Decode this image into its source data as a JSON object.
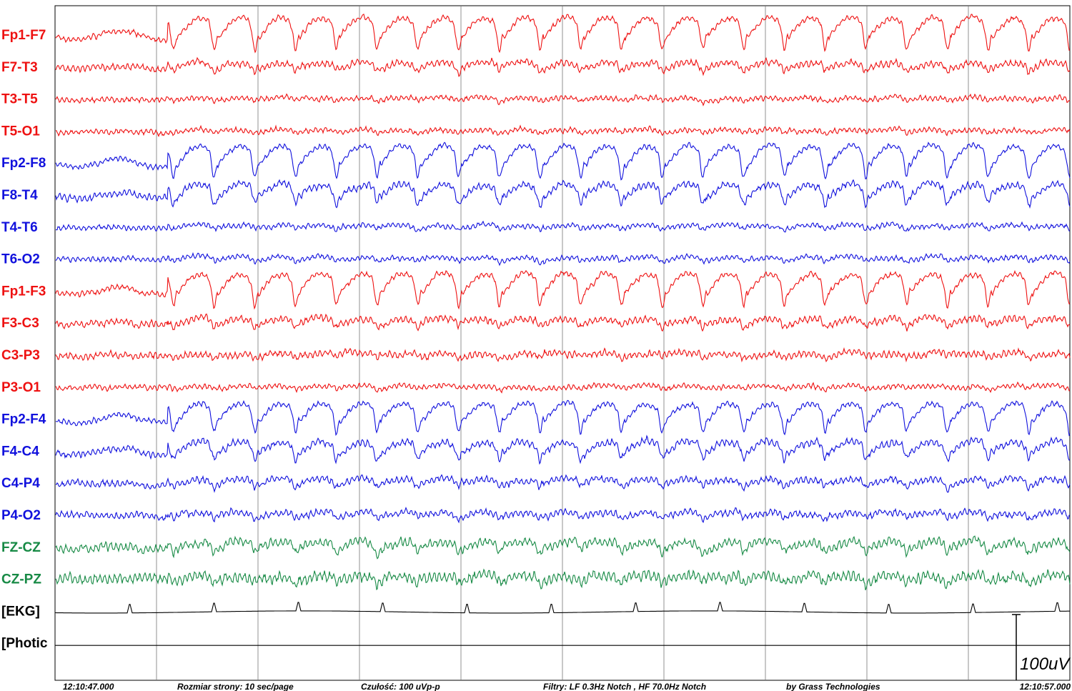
{
  "channels": [
    {
      "name": "Fp1-F7",
      "color": "#ee1111"
    },
    {
      "name": "F7-T3",
      "color": "#ee1111"
    },
    {
      "name": "T3-T5",
      "color": "#ee1111"
    },
    {
      "name": "T5-O1",
      "color": "#ee1111"
    },
    {
      "name": "Fp2-F8",
      "color": "#1111dd"
    },
    {
      "name": "F8-T4",
      "color": "#1111dd"
    },
    {
      "name": "T4-T6",
      "color": "#1111dd"
    },
    {
      "name": "T6-O2",
      "color": "#1111dd"
    },
    {
      "name": "Fp1-F3",
      "color": "#ee1111"
    },
    {
      "name": "F3-C3",
      "color": "#ee1111"
    },
    {
      "name": "C3-P3",
      "color": "#ee1111"
    },
    {
      "name": "P3-O1",
      "color": "#ee1111"
    },
    {
      "name": "Fp2-F4",
      "color": "#1111dd"
    },
    {
      "name": "F4-C4",
      "color": "#1111dd"
    },
    {
      "name": "C4-P4",
      "color": "#1111dd"
    },
    {
      "name": "P4-O2",
      "color": "#1111dd"
    },
    {
      "name": "FZ-CZ",
      "color": "#178a45"
    },
    {
      "name": "CZ-PZ",
      "color": "#178a45"
    },
    {
      "name": "[EKG]",
      "color": "#000000"
    },
    {
      "name": "[Photic",
      "color": "#000000"
    }
  ],
  "footer": {
    "start_time": "12:10:47.000",
    "page_size": "Rozmiar strony: 10 sec/page",
    "sensitivity": "Czułość:  100 uVp-p",
    "filters": "Filtry: LF  0.3Hz Notch , HF 70.0Hz Notch",
    "vendor": "by Grass Technologies",
    "end_time": "12:10:57.000"
  },
  "scale_label": "100uV"
}
